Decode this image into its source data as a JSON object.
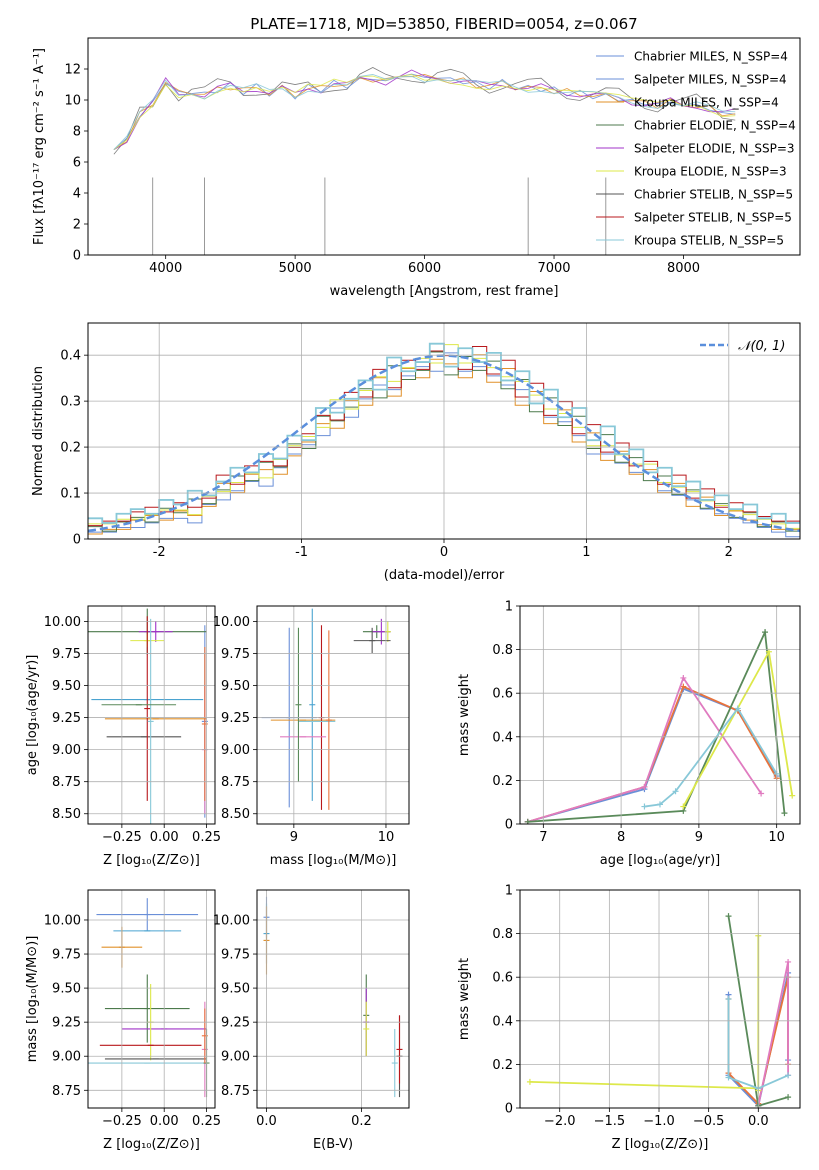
{
  "title": "PLATE=1718, MJD=53850, FIBERID=0054, z=0.067",
  "series_colors": [
    "#6a8fd8",
    "#4aa3d0",
    "#e0902a",
    "#4c7a4c",
    "#a033c8",
    "#dde84a",
    "#555555",
    "#b8181c",
    "#88c8d8",
    "#e07bc0",
    "#5a8a5a",
    "#e8733c"
  ],
  "chart_data": [
    {
      "id": "spectrum",
      "type": "line",
      "title": "PLATE=1718, MJD=53850, FIBERID=0054, z=0.067",
      "xlabel": "wavelength [Angstrom, rest frame]",
      "ylabel": "Flux [fλ10⁻¹⁷ erg cm⁻² s⁻¹ A⁻¹]",
      "xlim": [
        3400,
        8900
      ],
      "ylim": [
        0,
        14
      ],
      "xticks": [
        4000,
        5000,
        6000,
        7000,
        8000
      ],
      "yticks": [
        0,
        2,
        4,
        6,
        8,
        10,
        12
      ],
      "legend_position": "upper-right",
      "legend": [
        "Chabrier MILES, N_SSP=4",
        "Salpeter MILES, N_SSP=4",
        "Kroupa MILES, N_SSP=4",
        "Chabrier ELODIE, N_SSP=4",
        "Salpeter ELODIE, N_SSP=3",
        "Kroupa ELODIE, N_SSP=3",
        "Chabrier STELIB, N_SSP=5",
        "Salpeter STELIB, N_SSP=5",
        "Kroupa STELIB, N_SSP=5"
      ],
      "legend_colors": [
        "#6a8fd8",
        "#6a8fd8",
        "#e0902a",
        "#4c7a4c",
        "#a033c8",
        "#dde84a",
        "#555555",
        "#b8181c",
        "#88c8d8"
      ],
      "data_spectrum": {
        "x": [
          3600,
          3700,
          3800,
          3900,
          4000,
          4100,
          4200,
          4300,
          4400,
          4500,
          4600,
          4700,
          4800,
          4900,
          5000,
          5100,
          5200,
          5300,
          5400,
          5500,
          5600,
          5700,
          5800,
          5900,
          6000,
          6100,
          6200,
          6300,
          6400,
          6500,
          6600,
          6700,
          6800,
          6900,
          7000,
          7100,
          7200,
          7300,
          7400,
          7500,
          7600,
          7700,
          7800,
          7900,
          8000,
          8100,
          8200,
          8300,
          8400
        ],
        "y": [
          6.5,
          7.0,
          9.0,
          9.5,
          11.5,
          10.5,
          10.8,
          10.4,
          10.8,
          11.0,
          10.7,
          10.9,
          10.6,
          10.8,
          10.4,
          10.9,
          10.8,
          11.2,
          11.0,
          11.4,
          11.5,
          11.3,
          11.6,
          11.8,
          11.5,
          11.6,
          11.4,
          11.3,
          11.1,
          11.0,
          11.2,
          11.0,
          10.8,
          10.9,
          10.7,
          10.6,
          10.5,
          10.4,
          10.3,
          10.2,
          10.0,
          9.9,
          9.8,
          10.0,
          9.7,
          9.8,
          9.5,
          9.2,
          9.3
        ]
      },
      "model_spectrum": {
        "x": [
          3600,
          3700,
          3800,
          3900,
          4000,
          4100,
          4200,
          4300,
          4400,
          4500,
          4600,
          4700,
          4800,
          4900,
          5000,
          5100,
          5200,
          5300,
          5400,
          5500,
          5600,
          5700,
          5800,
          5900,
          6000,
          6100,
          6200,
          6300,
          6400,
          6500,
          6600,
          6700,
          6800,
          6900,
          7000,
          7100,
          7200,
          7300,
          7400,
          7500,
          7600,
          7700,
          7800,
          7900,
          8000,
          8100,
          8200,
          8300,
          8400
        ],
        "y": [
          6.8,
          7.5,
          9.0,
          9.8,
          11.2,
          10.4,
          10.6,
          10.3,
          10.7,
          10.9,
          10.6,
          10.8,
          10.5,
          10.7,
          10.3,
          10.8,
          10.7,
          11.1,
          10.9,
          11.3,
          11.4,
          11.2,
          11.5,
          11.7,
          11.4,
          11.5,
          11.3,
          11.2,
          11.0,
          10.9,
          11.1,
          10.9,
          10.7,
          10.8,
          10.6,
          10.5,
          10.4,
          10.3,
          10.2,
          10.1,
          9.9,
          9.8,
          9.7,
          9.9,
          9.6,
          9.7,
          9.4,
          9.1,
          9.2
        ]
      }
    },
    {
      "id": "residuals",
      "type": "step",
      "xlabel": "(data-model)/error",
      "ylabel": "Normed distribution",
      "xlim": [
        -2.5,
        2.5
      ],
      "ylim": [
        0,
        0.47
      ],
      "xticks": [
        -2,
        -1,
        0,
        1,
        2
      ],
      "yticks": [
        0.0,
        0.1,
        0.2,
        0.3,
        0.4
      ],
      "legend": [
        "𝒩(0, 1)"
      ],
      "legend_position": "upper-right",
      "bin_edges": [
        -2.5,
        -2.4,
        -2.3,
        -2.2,
        -2.1,
        -2.0,
        -1.9,
        -1.8,
        -1.7,
        -1.6,
        -1.5,
        -1.4,
        -1.3,
        -1.2,
        -1.1,
        -1.0,
        -0.9,
        -0.8,
        -0.7,
        -0.6,
        -0.5,
        -0.4,
        -0.3,
        -0.2,
        -0.1,
        0.0,
        0.1,
        0.2,
        0.3,
        0.4,
        0.5,
        0.6,
        0.7,
        0.8,
        0.9,
        1.0,
        1.1,
        1.2,
        1.3,
        1.4,
        1.5,
        1.6,
        1.7,
        1.8,
        1.9,
        2.0,
        2.1,
        2.2,
        2.3,
        2.4,
        2.5
      ],
      "histograms": [
        [
          0.03,
          0.03,
          0.04,
          0.04,
          0.05,
          0.06,
          0.06,
          0.05,
          0.09,
          0.1,
          0.12,
          0.14,
          0.13,
          0.17,
          0.2,
          0.22,
          0.24,
          0.3,
          0.28,
          0.32,
          0.35,
          0.34,
          0.37,
          0.39,
          0.38,
          0.42,
          0.38,
          0.39,
          0.37,
          0.35,
          0.34,
          0.31,
          0.28,
          0.27,
          0.24,
          0.2,
          0.2,
          0.18,
          0.16,
          0.16,
          0.12,
          0.11,
          0.1,
          0.08,
          0.07,
          0.06,
          0.05,
          0.04,
          0.03,
          0.02
        ],
        [
          0.02,
          0.03,
          0.03,
          0.05,
          0.06,
          0.05,
          0.07,
          0.06,
          0.08,
          0.13,
          0.11,
          0.15,
          0.16,
          0.15,
          0.19,
          0.22,
          0.26,
          0.25,
          0.31,
          0.3,
          0.36,
          0.32,
          0.38,
          0.36,
          0.4,
          0.39,
          0.36,
          0.41,
          0.35,
          0.38,
          0.3,
          0.33,
          0.26,
          0.29,
          0.22,
          0.24,
          0.18,
          0.2,
          0.15,
          0.16,
          0.11,
          0.13,
          0.08,
          0.1,
          0.06,
          0.07,
          0.05,
          0.04,
          0.03,
          0.03
        ],
        [
          0.03,
          0.02,
          0.04,
          0.05,
          0.04,
          0.07,
          0.06,
          0.09,
          0.08,
          0.11,
          0.14,
          0.13,
          0.17,
          0.16,
          0.21,
          0.2,
          0.27,
          0.26,
          0.29,
          0.33,
          0.31,
          0.38,
          0.35,
          0.37,
          0.41,
          0.36,
          0.4,
          0.37,
          0.39,
          0.33,
          0.35,
          0.28,
          0.31,
          0.25,
          0.27,
          0.2,
          0.23,
          0.17,
          0.18,
          0.13,
          0.14,
          0.1,
          0.11,
          0.07,
          0.08,
          0.05,
          0.06,
          0.03,
          0.04,
          0.02
        ]
      ],
      "normal_curve": {
        "mu": 0,
        "sigma": 1
      }
    },
    {
      "id": "age-vs-z",
      "type": "errorbar",
      "xlabel": "Z [log₁₀(Z/Z⊙)]",
      "ylabel": "age  [log₁₀(age/yr)]",
      "xlim": [
        -0.45,
        0.3
      ],
      "ylim": [
        8.42,
        10.12
      ],
      "xticks": [
        -0.25,
        0.0,
        0.25
      ],
      "xtick_labels": [
        "−0.25",
        "0.00",
        "0.25"
      ],
      "yticks": [
        8.5,
        8.75,
        9.0,
        9.25,
        9.5,
        9.75,
        10.0
      ],
      "ytick_labels": [
        "8.50",
        "8.75",
        "9.00",
        "9.25",
        "9.50",
        "9.75",
        "10.00"
      ],
      "points": [
        {
          "x": 0.24,
          "y": 9.22,
          "xerr": 0.0,
          "yerr": 0.75
        },
        {
          "x": -0.1,
          "y": 9.39,
          "xerr": 0.33,
          "yerr": 0.0
        },
        {
          "x": -0.05,
          "y": 9.24,
          "xerr": 0.3,
          "yerr": 0.0
        },
        {
          "x": -0.1,
          "y": 9.92,
          "xerr": 0.35,
          "yerr": 0.18
        },
        {
          "x": -0.05,
          "y": 9.92,
          "xerr": 0.1,
          "yerr": 0.08
        },
        {
          "x": -0.1,
          "y": 9.85,
          "xerr": 0.1,
          "yerr": 0.05
        },
        {
          "x": -0.12,
          "y": 9.1,
          "xerr": 0.22,
          "yerr": 0.0
        },
        {
          "x": -0.1,
          "y": 9.32,
          "xerr": 0.0,
          "yerr": 0.72
        },
        {
          "x": -0.08,
          "y": 9.22,
          "xerr": 0.0,
          "yerr": 0.8
        },
        {
          "x": 0.24,
          "y": 9.0,
          "xerr": 0.0,
          "yerr": 0.5
        },
        {
          "x": -0.15,
          "y": 9.35,
          "xerr": 0.22,
          "yerr": 0.0
        },
        {
          "x": 0.24,
          "y": 9.2,
          "xerr": 0.0,
          "yerr": 0.6
        }
      ]
    },
    {
      "id": "age-vs-mass",
      "type": "errorbar",
      "xlabel": "mass [log₁₀(M/M⊙)]",
      "ylabel": "",
      "xlim": [
        8.6,
        10.25
      ],
      "ylim": [
        8.42,
        10.12
      ],
      "xticks": [
        9,
        10
      ],
      "xtick_labels": [
        "9",
        "10"
      ],
      "yticks": [
        8.5,
        8.75,
        9.0,
        9.25,
        9.5,
        9.75,
        10.0
      ],
      "ytick_labels": [
        "8.50",
        "8.75",
        "9.00",
        "9.25",
        "9.50",
        "9.75",
        "10.00"
      ],
      "points": [
        {
          "x": 8.95,
          "y": 9.25,
          "xerr": 0.3,
          "yerr": 0.7
        },
        {
          "x": 9.2,
          "y": 9.35,
          "xerr": 0.0,
          "yerr": 0.75
        },
        {
          "x": 9.1,
          "y": 9.23,
          "xerr": 0.35,
          "yerr": 0.0
        },
        {
          "x": 9.9,
          "y": 9.92,
          "xerr": 0.15,
          "yerr": 0.05
        },
        {
          "x": 9.95,
          "y": 9.92,
          "xerr": 0.1,
          "yerr": 0.1
        },
        {
          "x": 10.02,
          "y": 9.92,
          "xerr": 0.0,
          "yerr": 0.08
        },
        {
          "x": 9.85,
          "y": 9.85,
          "xerr": 0.2,
          "yerr": 0.1
        },
        {
          "x": 9.3,
          "y": 9.25,
          "xerr": 0.0,
          "yerr": 0.72
        },
        {
          "x": 9.25,
          "y": 9.22,
          "xerr": 0.2,
          "yerr": 0.0
        },
        {
          "x": 9.1,
          "y": 9.1,
          "xerr": 0.25,
          "yerr": 0.0
        },
        {
          "x": 9.05,
          "y": 9.35,
          "xerr": 0.0,
          "yerr": 0.6
        },
        {
          "x": 9.38,
          "y": 9.23,
          "xerr": 0.0,
          "yerr": 0.7
        }
      ]
    },
    {
      "id": "weight-vs-age",
      "type": "line",
      "xlabel": "age  [log₁₀(age/yr)]",
      "ylabel": "mass weight",
      "xlim": [
        6.7,
        10.3
      ],
      "ylim": [
        0,
        1.0
      ],
      "xticks": [
        7,
        8,
        9,
        10
      ],
      "yticks": [
        0.0,
        0.2,
        0.4,
        0.6,
        0.8,
        1.0
      ],
      "series": [
        {
          "x": [
            6.8,
            8.3,
            8.8,
            9.5,
            10.0
          ],
          "y": [
            0.01,
            0.16,
            0.62,
            0.52,
            0.22
          ]
        },
        {
          "x": [
            6.8,
            8.3,
            8.8,
            9.5,
            10.0
          ],
          "y": [
            0.01,
            0.17,
            0.63,
            0.52,
            0.21
          ]
        },
        {
          "x": [
            6.8,
            8.3,
            8.8,
            9.8
          ],
          "y": [
            0.01,
            0.17,
            0.67,
            0.14
          ]
        },
        {
          "x": [
            6.8,
            8.8,
            9.85,
            10.1
          ],
          "y": [
            0.01,
            0.06,
            0.88,
            0.05
          ]
        },
        {
          "x": [
            8.8,
            9.9,
            10.2
          ],
          "y": [
            0.08,
            0.79,
            0.13
          ]
        },
        {
          "x": [
            8.3,
            8.5,
            8.7,
            9.5,
            10.0
          ],
          "y": [
            0.08,
            0.09,
            0.15,
            0.53,
            0.23
          ]
        }
      ]
    },
    {
      "id": "mass-vs-z",
      "type": "errorbar",
      "xlabel": "Z [log₁₀(Z/Z⊙)]",
      "ylabel": "mass [log₁₀(M/M⊙)]",
      "xlim": [
        -0.45,
        0.3
      ],
      "ylim": [
        8.62,
        10.22
      ],
      "xticks": [
        -0.25,
        0.0,
        0.25
      ],
      "xtick_labels": [
        "−0.25",
        "0.00",
        "0.25"
      ],
      "yticks": [
        8.75,
        9.0,
        9.25,
        9.5,
        9.75,
        10.0
      ],
      "ytick_labels": [
        "8.75",
        "9.00",
        "9.25",
        "9.50",
        "9.75",
        "10.00"
      ],
      "points": [
        {
          "x": -0.1,
          "y": 10.04,
          "xerr": 0.3,
          "yerr": 0.12
        },
        {
          "x": -0.1,
          "y": 9.92,
          "xerr": 0.2,
          "yerr": 0.0
        },
        {
          "x": -0.25,
          "y": 9.8,
          "xerr": 0.12,
          "yerr": 0.15
        },
        {
          "x": -0.1,
          "y": 9.35,
          "xerr": 0.25,
          "yerr": 0.25
        },
        {
          "x": 0.0,
          "y": 9.2,
          "xerr": 0.25,
          "yerr": 0.0
        },
        {
          "x": -0.08,
          "y": 9.25,
          "xerr": 0.0,
          "yerr": 0.28
        },
        {
          "x": -0.05,
          "y": 8.98,
          "xerr": 0.3,
          "yerr": 0.0
        },
        {
          "x": -0.08,
          "y": 9.08,
          "xerr": 0.3,
          "yerr": 0.0
        },
        {
          "x": -0.1,
          "y": 8.95,
          "xerr": 0.35,
          "yerr": 0.0
        },
        {
          "x": 0.24,
          "y": 9.05,
          "xerr": 0.0,
          "yerr": 0.35
        },
        {
          "x": 0.25,
          "y": 8.95,
          "xerr": 0.0,
          "yerr": 0.25
        },
        {
          "x": 0.24,
          "y": 9.15,
          "xerr": 0.0,
          "yerr": 0.2
        }
      ]
    },
    {
      "id": "mass-vs-ebv",
      "type": "errorbar",
      "xlabel": "E(B-V)",
      "ylabel": "",
      "xlim": [
        -0.02,
        0.3
      ],
      "ylim": [
        8.62,
        10.22
      ],
      "xticks": [
        0.0,
        0.2
      ],
      "xtick_labels": [
        "0.0",
        "0.2"
      ],
      "yticks": [
        8.75,
        9.0,
        9.25,
        9.5,
        9.75,
        10.0
      ],
      "ytick_labels": [
        "8.75",
        "9.00",
        "9.25",
        "9.50",
        "9.75",
        "10.00"
      ],
      "points": [
        {
          "x": 0.0,
          "y": 10.02,
          "xerr": 0.0,
          "yerr": 0.15
        },
        {
          "x": 0.0,
          "y": 9.9,
          "xerr": 0.0,
          "yerr": 0.22
        },
        {
          "x": 0.0,
          "y": 9.85,
          "xerr": 0.0,
          "yerr": 0.25
        },
        {
          "x": 0.21,
          "y": 9.3,
          "xerr": 0.0,
          "yerr": 0.3
        },
        {
          "x": 0.21,
          "y": 9.25,
          "xerr": 0.0,
          "yerr": 0.25
        },
        {
          "x": 0.21,
          "y": 9.2,
          "xerr": 0.0,
          "yerr": 0.2
        },
        {
          "x": 0.28,
          "y": 9.0,
          "xerr": 0.0,
          "yerr": 0.3
        },
        {
          "x": 0.28,
          "y": 9.05,
          "xerr": 0.0,
          "yerr": 0.25
        },
        {
          "x": 0.27,
          "y": 8.95,
          "xerr": 0.0,
          "yerr": 0.25
        }
      ]
    },
    {
      "id": "weight-vs-z",
      "type": "line",
      "xlabel": "Z [log₁₀(Z/Z⊙)]",
      "ylabel": "mass weight",
      "xlim": [
        -2.4,
        0.42
      ],
      "ylim": [
        0,
        1.0
      ],
      "xticks": [
        -2.0,
        -1.5,
        -1.0,
        -0.5,
        0.0
      ],
      "xtick_labels": [
        "−2.0",
        "−1.5",
        "−1.0",
        "−0.5",
        "0.0"
      ],
      "yticks": [
        0.0,
        0.2,
        0.4,
        0.6,
        0.8,
        1.0
      ],
      "series": [
        {
          "x": [
            -0.3,
            -0.3,
            0.0,
            0.3,
            0.3
          ],
          "y": [
            0.52,
            0.15,
            0.01,
            0.62,
            0.22
          ]
        },
        {
          "x": [
            -0.3,
            -0.3,
            0.0,
            0.3,
            0.3
          ],
          "y": [
            0.5,
            0.16,
            0.02,
            0.6,
            0.2
          ]
        },
        {
          "x": [
            0.0,
            0.3,
            0.3
          ],
          "y": [
            0.01,
            0.67,
            0.15
          ]
        },
        {
          "x": [
            -0.3,
            0.0,
            0.3
          ],
          "y": [
            0.88,
            0.01,
            0.05
          ]
        },
        {
          "x": [
            -2.3,
            0.0,
            0.0,
            0.0
          ],
          "y": [
            0.12,
            0.09,
            0.79,
            0.08
          ]
        },
        {
          "x": [
            -0.3,
            -0.3,
            0.0,
            0.3
          ],
          "y": [
            0.5,
            0.14,
            0.09,
            0.15
          ]
        }
      ]
    }
  ]
}
